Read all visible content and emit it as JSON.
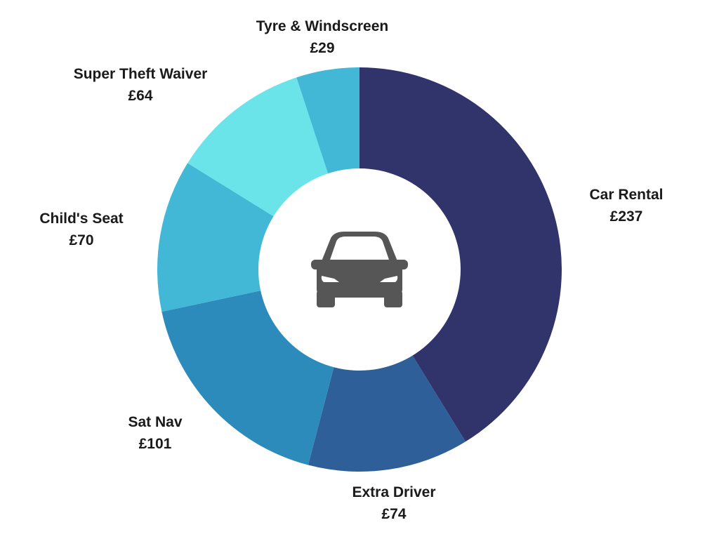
{
  "chart_data": {
    "type": "pie",
    "donut": true,
    "title": "",
    "center_icon": "car-icon",
    "slices": [
      {
        "label": "Car Rental",
        "value_label": "£237",
        "value": 237,
        "color": "#31346b"
      },
      {
        "label": "Extra Driver",
        "value_label": "£74",
        "value": 74,
        "color": "#2e5f98"
      },
      {
        "label": "Sat Nav",
        "value_label": "£101",
        "value": 101,
        "color": "#2d8bbb"
      },
      {
        "label": "Child's Seat",
        "value_label": "£70",
        "value": 70,
        "color": "#42b7d6"
      },
      {
        "label": "Super Theft Waiver",
        "value_label": "£64",
        "value": 64,
        "color": "#6ae4e8"
      },
      {
        "label": "Tyre & Windscreen",
        "value_label": "£29",
        "value": 29,
        "color": "#42b7d6"
      }
    ]
  }
}
